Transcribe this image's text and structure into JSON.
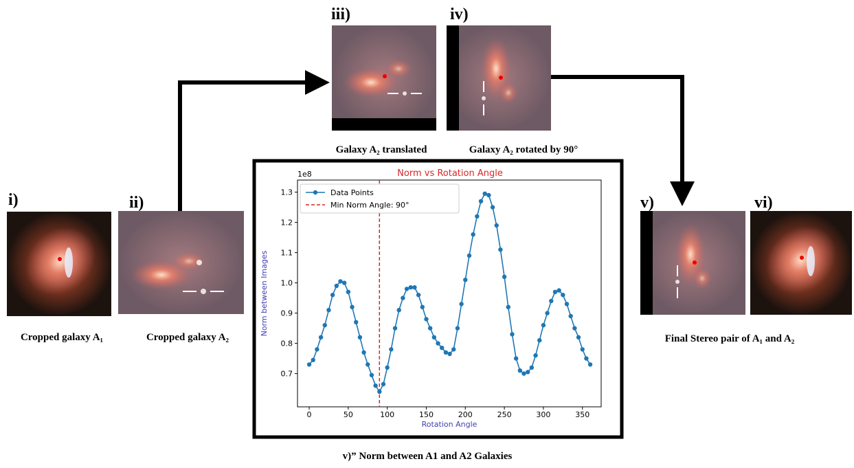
{
  "panels": [
    {
      "label": "i)",
      "caption": "Cropped galaxy A₁"
    },
    {
      "label": "ii)",
      "caption": "Cropped galaxy A₂"
    },
    {
      "label": "iii)",
      "caption": "Galaxy A₂ translated"
    },
    {
      "label": "iv)",
      "caption": "Galaxy A₂ rotated by 90°"
    },
    {
      "label": "v)"
    },
    {
      "label": "vi)"
    }
  ],
  "stereo_caption": "Final Stereo pair of A₁ and A₂",
  "chart_caption": "v)” Norm between A1 and A2 Galaxies",
  "chart_data": {
    "type": "line",
    "title": "Norm vs Rotation Angle",
    "x_label": "Rotation Angle",
    "y_label": "Norm between Images",
    "y_offset_label": "1e8",
    "x": [
      0,
      5,
      10,
      15,
      20,
      25,
      30,
      35,
      40,
      45,
      50,
      55,
      60,
      65,
      70,
      75,
      80,
      85,
      90,
      95,
      100,
      105,
      110,
      115,
      120,
      125,
      130,
      135,
      140,
      145,
      150,
      155,
      160,
      165,
      170,
      175,
      180,
      185,
      190,
      195,
      200,
      205,
      210,
      215,
      220,
      225,
      230,
      235,
      240,
      245,
      250,
      255,
      260,
      265,
      270,
      275,
      280,
      285,
      290,
      295,
      300,
      305,
      310,
      315,
      320,
      325,
      330,
      335,
      340,
      345,
      350,
      355,
      360
    ],
    "series": [
      {
        "name": "Data Points",
        "color": "#1f77b4",
        "values": [
          0.73,
          0.745,
          0.78,
          0.82,
          0.86,
          0.91,
          0.96,
          0.99,
          1.005,
          1.0,
          0.97,
          0.92,
          0.87,
          0.82,
          0.77,
          0.73,
          0.695,
          0.66,
          0.64,
          0.665,
          0.72,
          0.78,
          0.85,
          0.91,
          0.95,
          0.98,
          0.985,
          0.985,
          0.96,
          0.92,
          0.88,
          0.85,
          0.82,
          0.8,
          0.785,
          0.77,
          0.765,
          0.78,
          0.85,
          0.93,
          1.01,
          1.09,
          1.16,
          1.22,
          1.27,
          1.295,
          1.29,
          1.25,
          1.19,
          1.11,
          1.02,
          0.92,
          0.83,
          0.75,
          0.71,
          0.7,
          0.705,
          0.72,
          0.76,
          0.81,
          0.86,
          0.9,
          0.94,
          0.97,
          0.975,
          0.96,
          0.93,
          0.89,
          0.85,
          0.82,
          0.78,
          0.75,
          0.73
        ]
      }
    ],
    "vline": {
      "value": 90,
      "label": "Min Norm Angle: 90°",
      "color": "#d62728"
    },
    "xlim": [
      -15,
      374
    ],
    "ylim": [
      0.59,
      1.34
    ],
    "xticks": [
      0,
      50,
      100,
      150,
      200,
      250,
      300,
      350
    ],
    "yticks": [
      0.7,
      0.8,
      0.9,
      {
        "value": 1,
        "label": "1.0"
      },
      1.1,
      1.2,
      1.3
    ],
    "legend": "upper left"
  }
}
